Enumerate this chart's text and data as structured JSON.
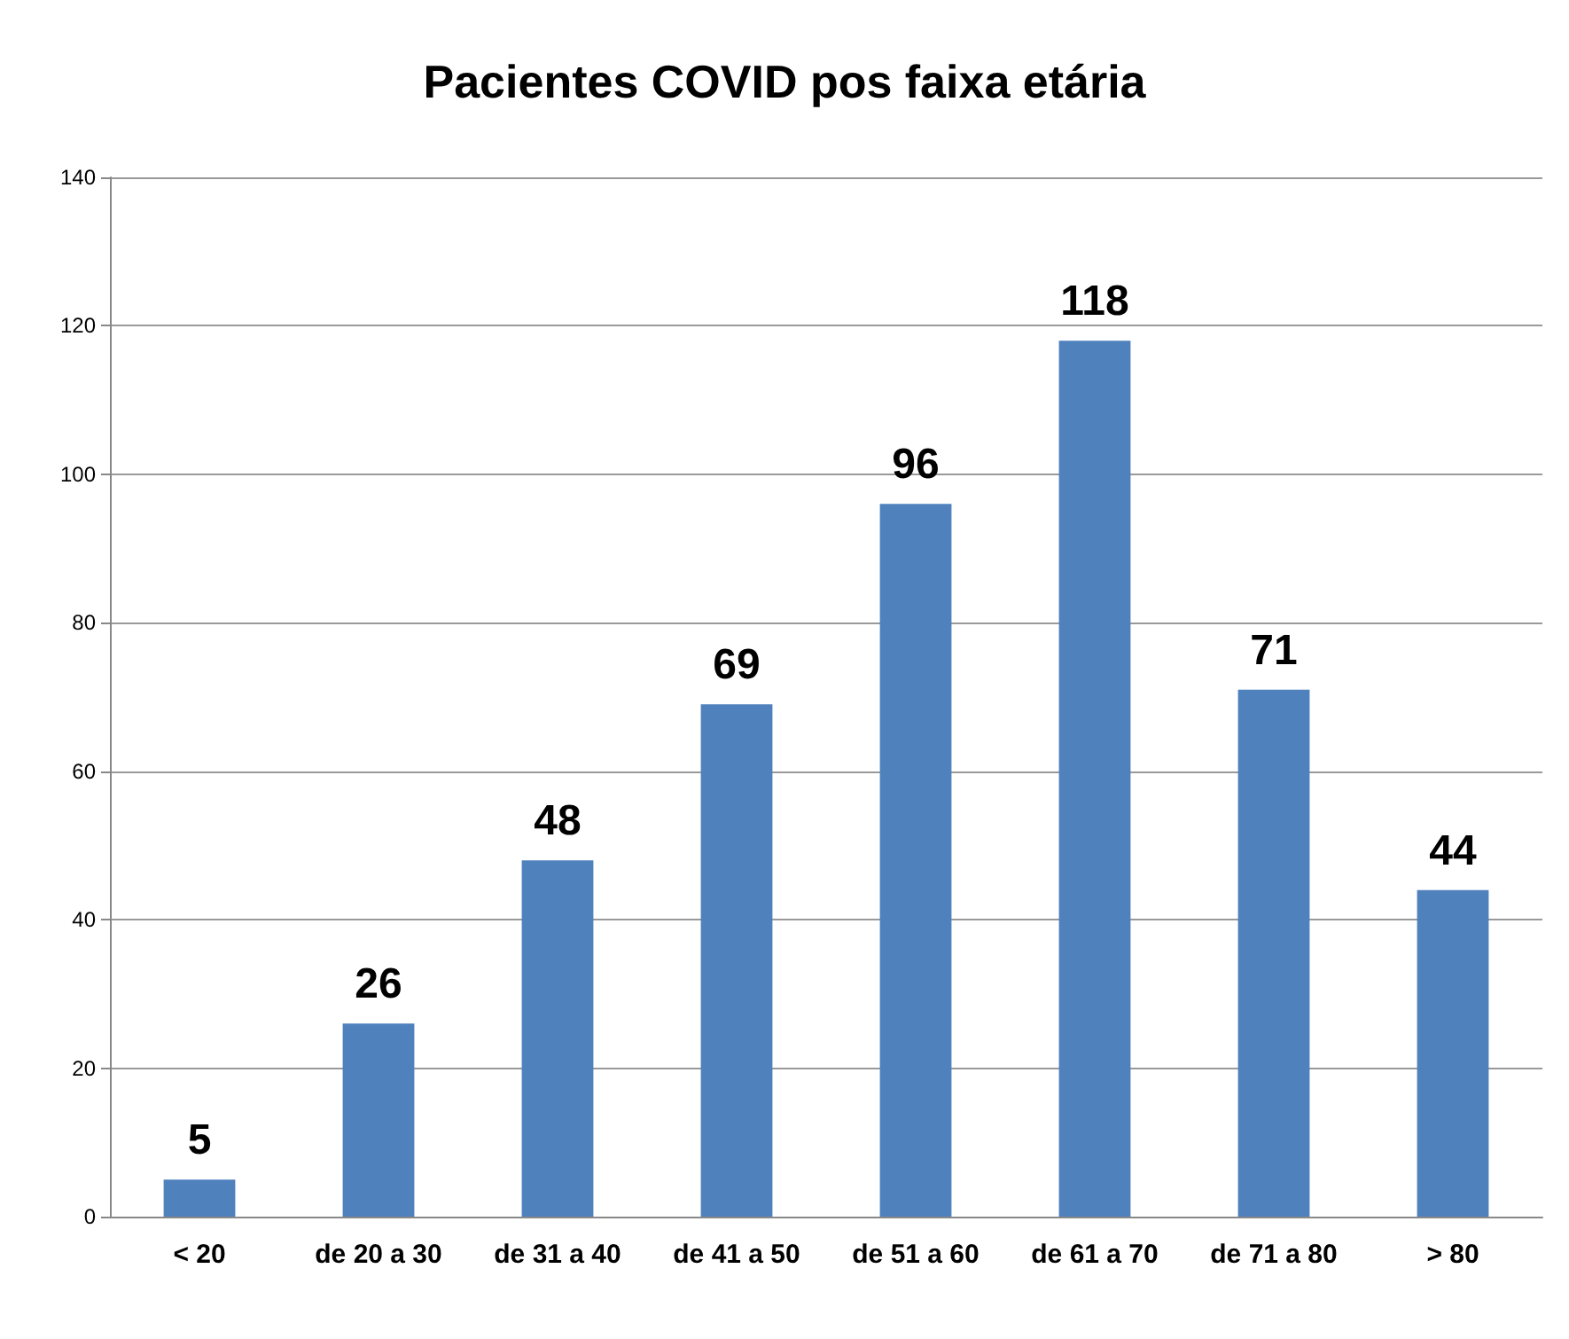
{
  "chart_data": {
    "type": "bar",
    "title": "Pacientes COVID pos faixa etária",
    "categories": [
      "< 20",
      "de 20 a 30",
      "de 31 a 40",
      "de 41 a 50",
      "de 51 a 60",
      "de 61 a 70",
      "de 71 a 80",
      "> 80"
    ],
    "values": [
      5,
      26,
      48,
      69,
      96,
      118,
      71,
      44
    ],
    "color": "#4f81bd",
    "ylim": [
      0,
      140
    ],
    "yticks": [
      0,
      20,
      40,
      60,
      80,
      100,
      120,
      140
    ],
    "grid": "y",
    "data_labels": true
  }
}
